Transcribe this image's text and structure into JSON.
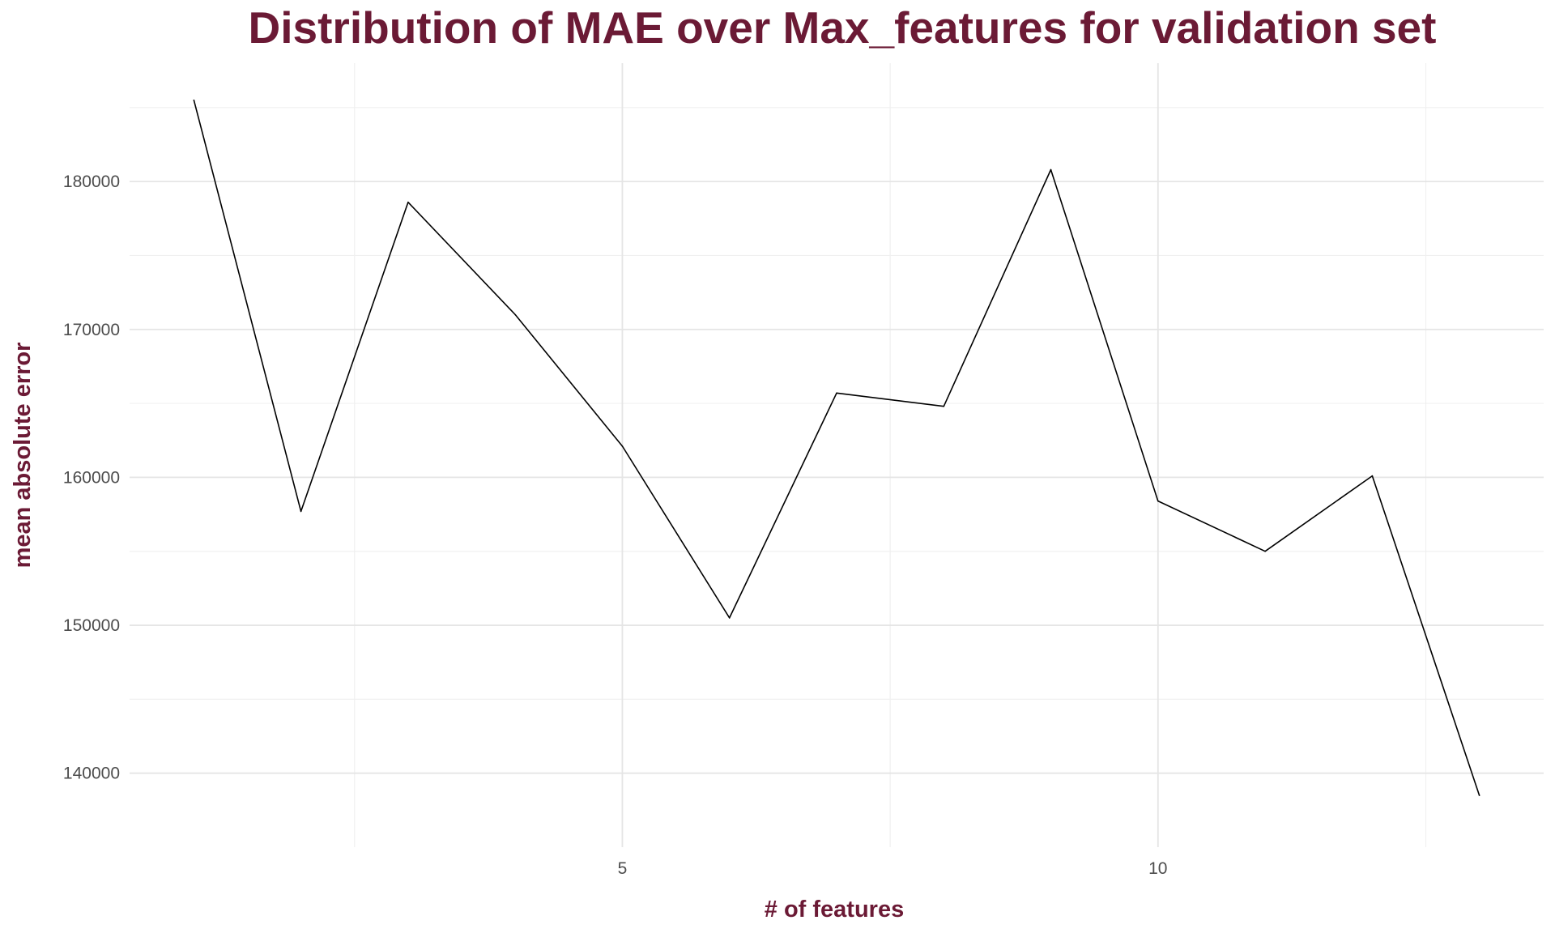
{
  "chart_data": {
    "type": "line",
    "title": "Distribution of MAE over Max_features for validation set",
    "xlabel": "# of features",
    "ylabel": "mean absolute error",
    "x": [
      1,
      2,
      3,
      4,
      5,
      6,
      7,
      8,
      9,
      10,
      11,
      12,
      13
    ],
    "series": [
      {
        "values": [
          185500,
          157700,
          178600,
          171000,
          162100,
          150500,
          165700,
          164800,
          180800,
          158400,
          155000,
          160100,
          138500
        ]
      }
    ],
    "xlim": [
      0.4,
      13.6
    ],
    "ylim": [
      135000,
      188000
    ],
    "x_ticks": [
      5,
      10
    ],
    "x_tick_labels": [
      "5",
      "10"
    ],
    "x_minor_ticks": [
      2.5,
      7.5,
      12.5
    ],
    "y_ticks": [
      140000,
      150000,
      160000,
      170000,
      180000
    ],
    "y_tick_labels": [
      "140000",
      "150000",
      "160000",
      "170000",
      "180000"
    ],
    "y_minor_ticks": [
      145000,
      155000,
      165000,
      175000,
      185000
    ],
    "grid": true,
    "legend": "none",
    "colors": {
      "title": "#6b1a35",
      "axis_title": "#6b1a35",
      "tick_label": "#4d4d4d",
      "line": "#000000",
      "grid_major": "#e5e5e5",
      "grid_minor": "#f0f0f0"
    }
  }
}
